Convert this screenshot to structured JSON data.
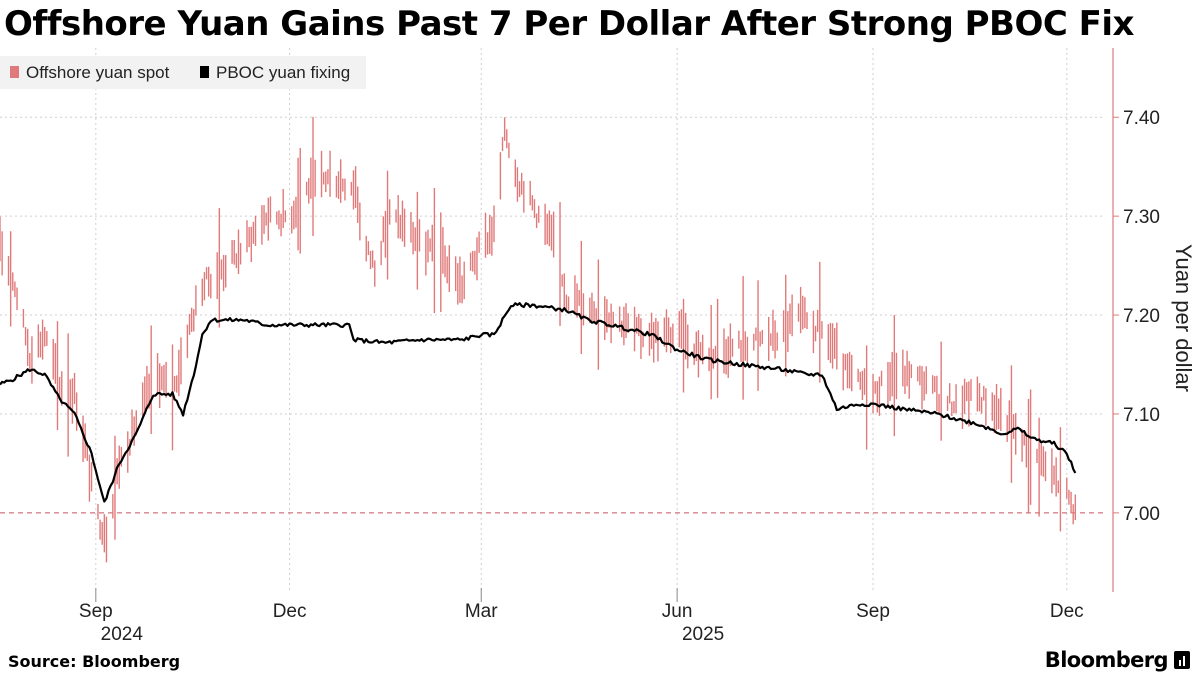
{
  "chart_data": {
    "type": "candlestick_line",
    "title": "Offshore Yuan Gains Past 7 Per Dollar After Strong PBOC Fix",
    "ylabel": "Yuan per dollar",
    "ylim": [
      6.92,
      7.47
    ],
    "yticks": [
      {
        "value": 7.0,
        "label": "7.00"
      },
      {
        "value": 7.1,
        "label": "7.10"
      },
      {
        "value": 7.2,
        "label": "7.20"
      },
      {
        "value": 7.3,
        "label": "7.30"
      },
      {
        "value": 7.4,
        "label": "7.40"
      }
    ],
    "xlim": [
      "2024-07-18",
      "2025-12-18"
    ],
    "xticks": [
      {
        "date": "2024-09-01",
        "label": "Sep"
      },
      {
        "date": "2024-12-01",
        "label": "Dec"
      },
      {
        "date": "2025-03-01",
        "label": "Mar"
      },
      {
        "date": "2025-06-01",
        "label": "Jun"
      },
      {
        "date": "2025-09-01",
        "label": "Sep"
      },
      {
        "date": "2025-12-01",
        "label": "Dec"
      }
    ],
    "year_labels": [
      {
        "date": "2024-09-01",
        "label": "2024"
      },
      {
        "date": "2025-06-01",
        "label": "2025"
      }
    ],
    "year_boundaries": [
      "2024-09-01",
      "2025-03-01",
      "2025-06-01"
    ],
    "reference_line": {
      "value": 7.0
    },
    "legend": {
      "position": "top-left",
      "entries": [
        {
          "label": "Offshore yuan spot",
          "color": "#e07a7a"
        },
        {
          "label": "PBOC yuan fixing",
          "color": "#000000"
        }
      ]
    },
    "series": [
      {
        "name": "Offshore yuan spot",
        "kind": "daily_range",
        "color": "#e07a7a",
        "anchors": [
          [
            "2024-07-18",
            7.27
          ],
          [
            "2024-07-25",
            7.23
          ],
          [
            "2024-08-01",
            7.16
          ],
          [
            "2024-08-08",
            7.18
          ],
          [
            "2024-08-15",
            7.13
          ],
          [
            "2024-08-22",
            7.12
          ],
          [
            "2024-08-27",
            7.07
          ],
          [
            "2024-09-01",
            7.0
          ],
          [
            "2024-09-06",
            6.98
          ],
          [
            "2024-09-12",
            7.05
          ],
          [
            "2024-09-18",
            7.08
          ],
          [
            "2024-09-25",
            7.12
          ],
          [
            "2024-09-30",
            7.14
          ],
          [
            "2024-10-07",
            7.12
          ],
          [
            "2024-10-14",
            7.18
          ],
          [
            "2024-10-21",
            7.23
          ],
          [
            "2024-11-01",
            7.25
          ],
          [
            "2024-11-10",
            7.27
          ],
          [
            "2024-11-20",
            7.3
          ],
          [
            "2024-12-01",
            7.3
          ],
          [
            "2024-12-10",
            7.33
          ],
          [
            "2024-12-20",
            7.34
          ],
          [
            "2025-01-01",
            7.33
          ],
          [
            "2025-01-05",
            7.27
          ],
          [
            "2025-01-10",
            7.25
          ],
          [
            "2025-01-17",
            7.3
          ],
          [
            "2025-01-25",
            7.29
          ],
          [
            "2025-02-01",
            7.27
          ],
          [
            "2025-02-10",
            7.26
          ],
          [
            "2025-02-20",
            7.23
          ],
          [
            "2025-03-01",
            7.27
          ],
          [
            "2025-03-08",
            7.29
          ],
          [
            "2025-03-12",
            7.39
          ],
          [
            "2025-03-18",
            7.34
          ],
          [
            "2025-03-28",
            7.3
          ],
          [
            "2025-04-05",
            7.27
          ],
          [
            "2025-04-10",
            7.22
          ],
          [
            "2025-04-20",
            7.21
          ],
          [
            "2025-05-01",
            7.2
          ],
          [
            "2025-05-15",
            7.18
          ],
          [
            "2025-06-01",
            7.18
          ],
          [
            "2025-06-15",
            7.16
          ],
          [
            "2025-07-01",
            7.17
          ],
          [
            "2025-07-20",
            7.18
          ],
          [
            "2025-07-27",
            7.2
          ],
          [
            "2025-08-10",
            7.18
          ],
          [
            "2025-08-20",
            7.14
          ],
          [
            "2025-09-01",
            7.12
          ],
          [
            "2025-09-10",
            7.14
          ],
          [
            "2025-09-20",
            7.14
          ],
          [
            "2025-10-01",
            7.12
          ],
          [
            "2025-10-10",
            7.11
          ],
          [
            "2025-10-20",
            7.12
          ],
          [
            "2025-11-01",
            7.1
          ],
          [
            "2025-11-10",
            7.07
          ],
          [
            "2025-11-20",
            7.05
          ],
          [
            "2025-12-01",
            7.02
          ],
          [
            "2025-12-05",
            7.0
          ]
        ]
      },
      {
        "name": "PBOC yuan fixing",
        "kind": "line",
        "color": "#000000",
        "anchors": [
          [
            "2024-07-18",
            7.13
          ],
          [
            "2024-07-24",
            7.135
          ],
          [
            "2024-08-01",
            7.145
          ],
          [
            "2024-08-08",
            7.14
          ],
          [
            "2024-08-15",
            7.115
          ],
          [
            "2024-08-22",
            7.1
          ],
          [
            "2024-08-30",
            7.06
          ],
          [
            "2024-09-05",
            7.01
          ],
          [
            "2024-09-12",
            7.05
          ],
          [
            "2024-09-20",
            7.08
          ],
          [
            "2024-09-28",
            7.12
          ],
          [
            "2024-10-07",
            7.12
          ],
          [
            "2024-10-12",
            7.1
          ],
          [
            "2024-10-17",
            7.14
          ],
          [
            "2024-10-21",
            7.18
          ],
          [
            "2024-10-25",
            7.195
          ],
          [
            "2024-11-10",
            7.195
          ],
          [
            "2024-11-20",
            7.19
          ],
          [
            "2024-12-01",
            7.19
          ],
          [
            "2024-12-20",
            7.19
          ],
          [
            "2024-12-29",
            7.19
          ],
          [
            "2024-12-31",
            7.175
          ],
          [
            "2025-01-15",
            7.172
          ],
          [
            "2025-02-01",
            7.175
          ],
          [
            "2025-02-20",
            7.175
          ],
          [
            "2025-03-01",
            7.18
          ],
          [
            "2025-03-07",
            7.18
          ],
          [
            "2025-03-15",
            7.21
          ],
          [
            "2025-03-25",
            7.21
          ],
          [
            "2025-04-10",
            7.205
          ],
          [
            "2025-04-20",
            7.195
          ],
          [
            "2025-05-01",
            7.19
          ],
          [
            "2025-05-20",
            7.18
          ],
          [
            "2025-06-01",
            7.165
          ],
          [
            "2025-06-15",
            7.155
          ],
          [
            "2025-07-01",
            7.15
          ],
          [
            "2025-07-20",
            7.145
          ],
          [
            "2025-08-01",
            7.14
          ],
          [
            "2025-08-08",
            7.14
          ],
          [
            "2025-08-15",
            7.105
          ],
          [
            "2025-08-25",
            7.11
          ],
          [
            "2025-09-01",
            7.11
          ],
          [
            "2025-09-15",
            7.105
          ],
          [
            "2025-10-01",
            7.1
          ],
          [
            "2025-10-10",
            7.095
          ],
          [
            "2025-10-20",
            7.09
          ],
          [
            "2025-11-01",
            7.08
          ],
          [
            "2025-11-08",
            7.085
          ],
          [
            "2025-11-15",
            7.075
          ],
          [
            "2025-11-25",
            7.07
          ],
          [
            "2025-12-01",
            7.06
          ],
          [
            "2025-12-05",
            7.04
          ]
        ]
      }
    ]
  },
  "footer": {
    "source": "Source: Bloomberg",
    "brand": "Bloomberg"
  }
}
